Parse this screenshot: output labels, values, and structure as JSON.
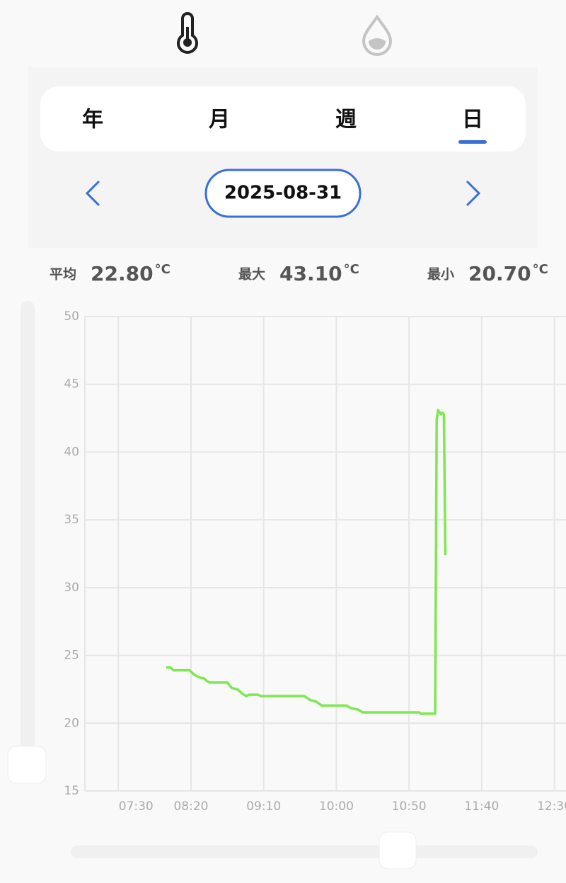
{
  "tabs": [
    "年",
    "月",
    "週",
    "日"
  ],
  "date": "2025-08-31",
  "stats": [
    {
      "label": "平均",
      "value": "22.80",
      "unit": "°C"
    },
    {
      "label": "最大",
      "value": "43.10",
      "unit": "°C"
    },
    {
      "label": "最小",
      "value": "20.70",
      "unit": "°C"
    }
  ],
  "chart_data": {
    "type": "line",
    "color": "#7ee84f",
    "grid": true,
    "x": [
      "08:03",
      "08:06",
      "08:08",
      "08:19",
      "08:22",
      "08:25",
      "08:29",
      "08:31",
      "08:33",
      "08:45",
      "08:48",
      "08:52",
      "08:55",
      "08:58",
      "09:00",
      "09:06",
      "09:08",
      "09:38",
      "09:42",
      "09:46",
      "09:50",
      "10:07",
      "10:10",
      "10:15",
      "10:18",
      "10:57",
      "10:58",
      "11:08",
      "11:09",
      "11:10",
      "11:12",
      "11:13",
      "11:14",
      "11:15"
    ],
    "values": [
      24.1,
      24.1,
      23.9,
      23.9,
      23.6,
      23.4,
      23.3,
      23.1,
      23.0,
      23.0,
      22.6,
      22.5,
      22.2,
      22.0,
      22.1,
      22.1,
      22.0,
      22.0,
      21.7,
      21.6,
      21.3,
      21.3,
      21.1,
      21.0,
      20.8,
      20.8,
      20.7,
      20.7,
      42.4,
      43.1,
      42.8,
      42.9,
      42.8,
      32.4
    ],
    "xlim": [
      "07:07",
      "12:38"
    ],
    "xticks": [
      "07:30",
      "08:20",
      "09:10",
      "10:00",
      "10:50",
      "11:40",
      "12:30"
    ],
    "ylim": [
      15,
      50
    ],
    "yticks": [
      15,
      20,
      25,
      30,
      35,
      40,
      45,
      50
    ]
  }
}
